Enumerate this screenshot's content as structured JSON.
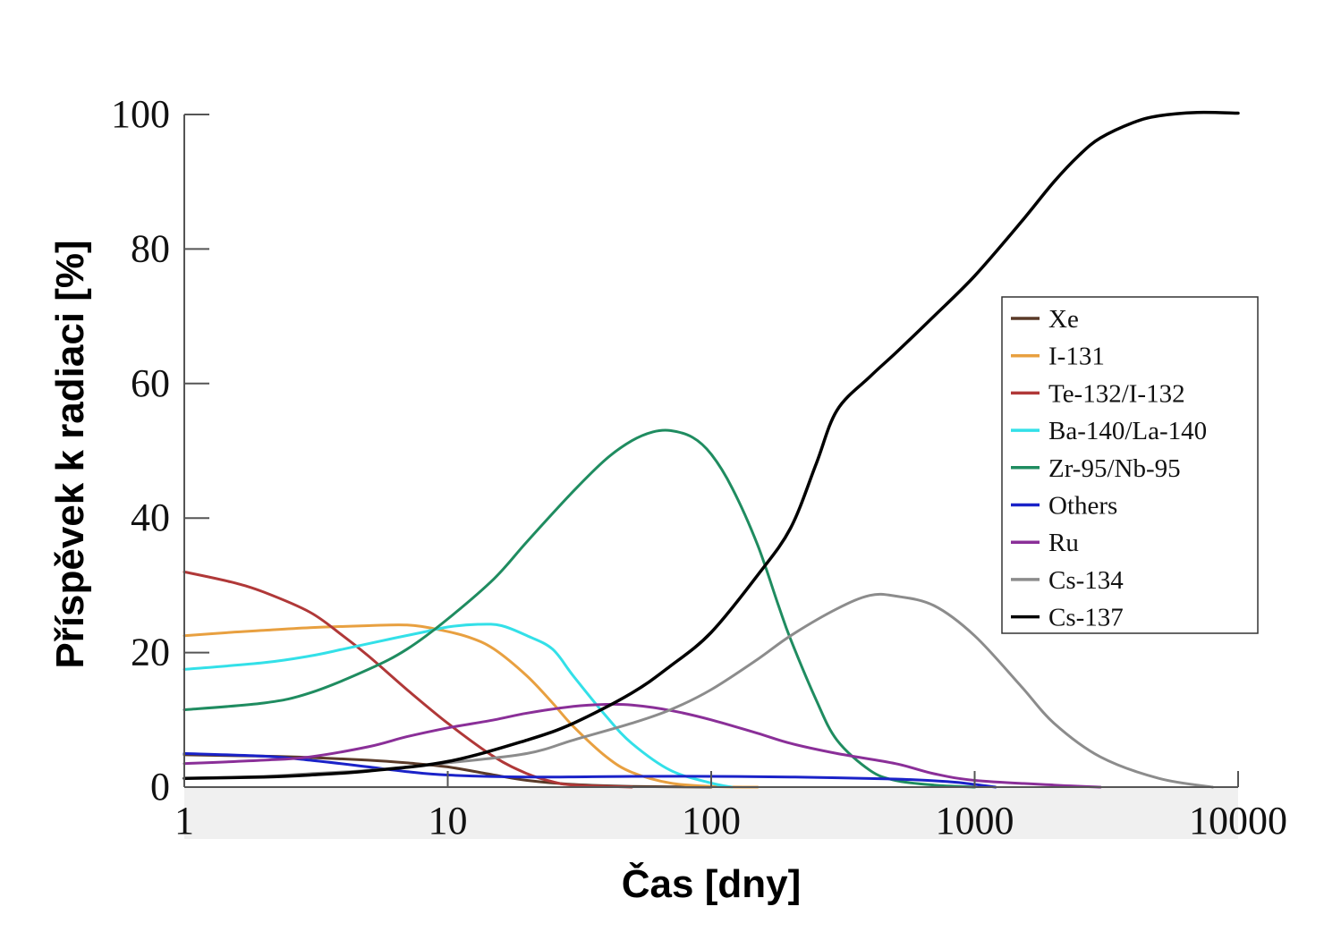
{
  "chart_data": {
    "type": "line",
    "xlabel": "Čas [dny]",
    "ylabel": "Příspěvek k radiaci [%]",
    "x_scale": "log",
    "xlim": [
      1,
      10000
    ],
    "ylim": [
      0,
      100
    ],
    "x_ticks": [
      {
        "value": 1,
        "label": "1"
      },
      {
        "value": 10,
        "label": "10"
      },
      {
        "value": 100,
        "label": "100"
      },
      {
        "value": 1000,
        "label": "1000"
      },
      {
        "value": 10000,
        "label": "10000"
      }
    ],
    "y_ticks": [
      {
        "value": 0,
        "label": "0"
      },
      {
        "value": 20,
        "label": "20"
      },
      {
        "value": 40,
        "label": "40"
      },
      {
        "value": 60,
        "label": "60"
      },
      {
        "value": 80,
        "label": "80"
      },
      {
        "value": 100,
        "label": "100"
      }
    ],
    "grid": false,
    "legend_position": "right",
    "series": [
      {
        "name": "Xe",
        "color": "#5a3a28",
        "points": [
          [
            1,
            4.8
          ],
          [
            2,
            4.6
          ],
          [
            3,
            4.4
          ],
          [
            5,
            4.0
          ],
          [
            7,
            3.6
          ],
          [
            10,
            3.0
          ],
          [
            15,
            1.8
          ],
          [
            20,
            1.0
          ],
          [
            30,
            0.4
          ],
          [
            50,
            0.1
          ],
          [
            100,
            0
          ]
        ]
      },
      {
        "name": "I-131",
        "color": "#e8a040",
        "points": [
          [
            1,
            22.5
          ],
          [
            1.5,
            23
          ],
          [
            2,
            23.3
          ],
          [
            3,
            23.7
          ],
          [
            5,
            24
          ],
          [
            7,
            24.1
          ],
          [
            9,
            23.5
          ],
          [
            12,
            22.3
          ],
          [
            15,
            20.5
          ],
          [
            20,
            16.5
          ],
          [
            25,
            12.5
          ],
          [
            30,
            9
          ],
          [
            40,
            4.5
          ],
          [
            50,
            2.2
          ],
          [
            70,
            0.6
          ],
          [
            100,
            0.1
          ],
          [
            150,
            0
          ]
        ]
      },
      {
        "name": "Te-132/I-132",
        "color": "#b03838",
        "points": [
          [
            1,
            32
          ],
          [
            1.5,
            30.5
          ],
          [
            2,
            29
          ],
          [
            3,
            26
          ],
          [
            4,
            22.5
          ],
          [
            5,
            19.5
          ],
          [
            7,
            14.5
          ],
          [
            10,
            9.5
          ],
          [
            15,
            4.5
          ],
          [
            20,
            2
          ],
          [
            25,
            0.8
          ],
          [
            30,
            0.3
          ],
          [
            50,
            0
          ]
        ]
      },
      {
        "name": "Ba-140/La-140",
        "color": "#33e0e8",
        "points": [
          [
            1,
            17.5
          ],
          [
            2,
            18.5
          ],
          [
            3,
            19.5
          ],
          [
            4,
            20.5
          ],
          [
            6,
            22
          ],
          [
            8,
            23
          ],
          [
            10,
            23.8
          ],
          [
            13,
            24.2
          ],
          [
            16,
            24
          ],
          [
            20,
            22.5
          ],
          [
            25,
            20.5
          ],
          [
            30,
            16.5
          ],
          [
            40,
            10.5
          ],
          [
            50,
            6.5
          ],
          [
            70,
            2.5
          ],
          [
            100,
            0.6
          ],
          [
            120,
            0
          ]
        ]
      },
      {
        "name": "Zr-95/Nb-95",
        "color": "#1f8c60",
        "points": [
          [
            1,
            11.5
          ],
          [
            2,
            12.5
          ],
          [
            3,
            14
          ],
          [
            5,
            17.5
          ],
          [
            7,
            20.5
          ],
          [
            10,
            25
          ],
          [
            15,
            31
          ],
          [
            20,
            36.5
          ],
          [
            30,
            44
          ],
          [
            40,
            48.8
          ],
          [
            50,
            51.5
          ],
          [
            60,
            52.8
          ],
          [
            70,
            53
          ],
          [
            85,
            52
          ],
          [
            100,
            49.5
          ],
          [
            120,
            44.5
          ],
          [
            150,
            36
          ],
          [
            180,
            27
          ],
          [
            200,
            22
          ],
          [
            250,
            13
          ],
          [
            300,
            7
          ],
          [
            400,
            2.5
          ],
          [
            500,
            1
          ],
          [
            700,
            0.3
          ],
          [
            1000,
            0
          ]
        ]
      },
      {
        "name": "Others",
        "color": "#1a22c8",
        "points": [
          [
            1,
            5
          ],
          [
            2,
            4.6
          ],
          [
            3,
            4
          ],
          [
            5,
            3
          ],
          [
            7,
            2.3
          ],
          [
            10,
            1.8
          ],
          [
            20,
            1.5
          ],
          [
            50,
            1.6
          ],
          [
            100,
            1.6
          ],
          [
            200,
            1.5
          ],
          [
            500,
            1.2
          ],
          [
            800,
            0.8
          ],
          [
            1000,
            0.4
          ],
          [
            1200,
            0
          ]
        ]
      },
      {
        "name": "Ru",
        "color": "#8a2f98",
        "points": [
          [
            1,
            3.5
          ],
          [
            2,
            4
          ],
          [
            3,
            4.5
          ],
          [
            5,
            6
          ],
          [
            7,
            7.5
          ],
          [
            10,
            8.8
          ],
          [
            15,
            10
          ],
          [
            20,
            11
          ],
          [
            30,
            12
          ],
          [
            40,
            12.3
          ],
          [
            50,
            12.2
          ],
          [
            70,
            11.4
          ],
          [
            100,
            10
          ],
          [
            150,
            8
          ],
          [
            200,
            6.5
          ],
          [
            300,
            5
          ],
          [
            500,
            3.5
          ],
          [
            700,
            2
          ],
          [
            1000,
            1
          ],
          [
            2000,
            0.3
          ],
          [
            3000,
            0
          ]
        ]
      },
      {
        "name": "Cs-134",
        "color": "#8c8c8c",
        "points": [
          [
            1,
            1.3
          ],
          [
            2,
            1.6
          ],
          [
            3,
            2
          ],
          [
            5,
            2.5
          ],
          [
            10,
            3.6
          ],
          [
            20,
            5
          ],
          [
            30,
            7
          ],
          [
            50,
            9.5
          ],
          [
            70,
            11.5
          ],
          [
            100,
            14.5
          ],
          [
            150,
            19
          ],
          [
            200,
            22.5
          ],
          [
            300,
            26.5
          ],
          [
            400,
            28.5
          ],
          [
            500,
            28.4
          ],
          [
            700,
            27
          ],
          [
            1000,
            22.5
          ],
          [
            1500,
            15
          ],
          [
            2000,
            9.5
          ],
          [
            3000,
            4.5
          ],
          [
            5000,
            1.3
          ],
          [
            8000,
            0
          ]
        ]
      },
      {
        "name": "Cs-137",
        "color": "#000000",
        "points": [
          [
            1,
            1.3
          ],
          [
            2,
            1.5
          ],
          [
            3,
            1.8
          ],
          [
            5,
            2.4
          ],
          [
            10,
            3.8
          ],
          [
            20,
            7
          ],
          [
            30,
            9.5
          ],
          [
            50,
            14
          ],
          [
            70,
            18
          ],
          [
            100,
            23
          ],
          [
            150,
            31.5
          ],
          [
            200,
            38.5
          ],
          [
            250,
            48
          ],
          [
            300,
            56
          ],
          [
            400,
            61
          ],
          [
            500,
            64.5
          ],
          [
            700,
            70
          ],
          [
            1000,
            76
          ],
          [
            1500,
            84
          ],
          [
            2000,
            90
          ],
          [
            2500,
            94
          ],
          [
            3000,
            96.5
          ],
          [
            4000,
            98.8
          ],
          [
            5000,
            99.8
          ],
          [
            7000,
            100.3
          ],
          [
            10000,
            100.2
          ]
        ]
      }
    ]
  }
}
